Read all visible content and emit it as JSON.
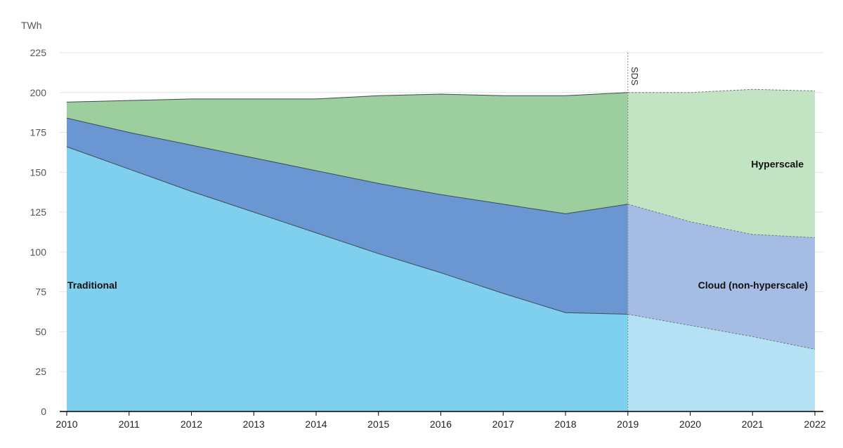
{
  "chart_data": {
    "type": "area",
    "stacked": true,
    "ylabel": "TWh",
    "ylim": [
      0,
      225
    ],
    "yticks": [
      "0",
      "25",
      "50",
      "75",
      "100",
      "125",
      "150",
      "175",
      "200",
      "225"
    ],
    "x": [
      "2010",
      "2011",
      "2012",
      "2013",
      "2014",
      "2015",
      "2016",
      "2017",
      "2018",
      "2019",
      "2020",
      "2021",
      "2022"
    ],
    "grid": true,
    "projection_start": "2019",
    "projection_label": "SDS",
    "series": [
      {
        "name": "Traditional",
        "color": "#7fcfee",
        "projection_color": "#b4e1f4",
        "values": [
          166,
          152,
          138,
          125,
          112,
          99,
          87,
          74,
          62,
          61,
          54,
          47,
          39
        ]
      },
      {
        "name": "Cloud (non-hyperscale)",
        "color": "#6a97d1",
        "projection_color": "#a5bde5",
        "values": [
          18,
          23,
          29,
          34,
          39,
          44,
          49,
          56,
          62,
          69,
          65,
          64,
          70
        ]
      },
      {
        "name": "Hyperscale",
        "color": "#9dcf9e",
        "projection_color": "#c2e4c3",
        "values": [
          10,
          20,
          29,
          37,
          45,
          55,
          63,
          68,
          74,
          70,
          81,
          91,
          92
        ]
      }
    ]
  }
}
